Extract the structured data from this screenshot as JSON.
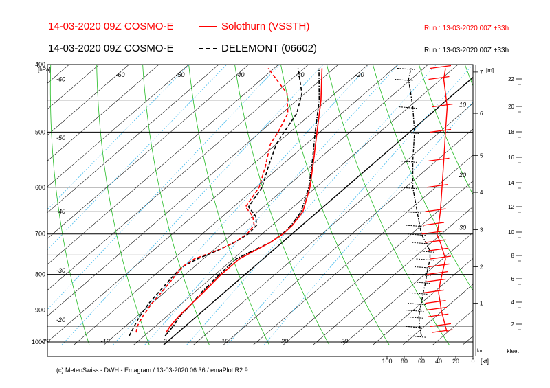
{
  "header": {
    "line1_title": "14-03-2020 09Z COSMO-E",
    "line1_station": "Solothurn (VSSTH)",
    "line1_run": "Run : 13-03-2020 00Z +33h",
    "line2_title": "14-03-2020 09Z COSMO-E",
    "line2_station": "DELEMONT (06602)",
    "line2_run": "Run : 13-03-2020 00Z +33h"
  },
  "footer": {
    "credit": "(c) MeteoSwiss - DWH - Emagram / 13-03-2020  06:36 / emaPlot R2.9"
  },
  "colors": {
    "solothurn": "#ff0000",
    "delemont": "#000000",
    "isotherm": "#000000",
    "dry_adiabat": "#22bb22",
    "mixing_ratio": "#44bbee",
    "grid": "#000000"
  },
  "chart_data": {
    "type": "line",
    "subtype": "emagram",
    "pressure_axis_label": "[hPa]",
    "pressure_ticks": [
      400,
      500,
      600,
      700,
      800,
      900,
      1000
    ],
    "temperature_axis_labels": [
      "-30",
      "-20",
      "-10",
      "0",
      "10",
      "20",
      "30"
    ],
    "temperature_labels_outside": [
      "-50",
      "-40",
      "-30"
    ],
    "isotherm_labels_left": [
      "-60",
      "-50",
      "-40",
      "-30",
      "-20"
    ],
    "isotherm_labels_top": [
      "-60",
      "-50",
      "-40",
      "-30",
      "-20"
    ],
    "theta_labels": [
      "10",
      "20",
      "30"
    ],
    "height_m_label": "[m]",
    "height_m_ticks": [
      "7",
      "6",
      "5",
      "4",
      "3",
      "2",
      "1"
    ],
    "height_km_label": "km",
    "height_kfeet_label": "kfeet",
    "height_kfeet_ticks": [
      "22",
      "20",
      "18",
      "16",
      "14",
      "12",
      "10",
      "8",
      "6",
      "4",
      "2"
    ],
    "wind_axis_label": "[kt]",
    "wind_ticks": [
      "100",
      "80",
      "60",
      "40",
      "20",
      "0"
    ],
    "series": [
      {
        "name": "Solothurn (VSSTH)",
        "temperature": [
          [
            969,
            -2.0
          ],
          [
            950,
            -2.5
          ],
          [
            920,
            -3.0
          ],
          [
            880,
            -3.3
          ],
          [
            850,
            -3.5
          ],
          [
            800,
            -4.0
          ],
          [
            760,
            -4.0
          ],
          [
            740,
            -3.0
          ],
          [
            720,
            -2.0
          ],
          [
            700,
            -1.5
          ],
          [
            680,
            -1.6
          ],
          [
            650,
            -2.5
          ],
          [
            600,
            -6.0
          ],
          [
            550,
            -10.5
          ],
          [
            500,
            -15.5
          ],
          [
            450,
            -21.0
          ],
          [
            405,
            -27.0
          ]
        ],
        "dewpoint": [
          [
            969,
            -7.0
          ],
          [
            950,
            -8.0
          ],
          [
            920,
            -9.0
          ],
          [
            880,
            -10.0
          ],
          [
            850,
            -10.5
          ],
          [
            800,
            -11.5
          ],
          [
            780,
            -12.0
          ],
          [
            760,
            -11.5
          ],
          [
            745,
            -10.0
          ],
          [
            735,
            -9.0
          ],
          [
            720,
            -8.0
          ],
          [
            700,
            -7.5
          ],
          [
            680,
            -8.0
          ],
          [
            660,
            -10.0
          ],
          [
            640,
            -13.0
          ],
          [
            600,
            -14.5
          ],
          [
            560,
            -17.5
          ],
          [
            520,
            -21.0
          ],
          [
            500,
            -22.0
          ],
          [
            470,
            -24.0
          ],
          [
            440,
            -28.0
          ],
          [
            405,
            -36.0
          ]
        ],
        "wind_kt": [
          [
            969,
            30
          ],
          [
            950,
            32
          ],
          [
            920,
            35
          ],
          [
            900,
            37
          ],
          [
            880,
            38
          ],
          [
            850,
            40
          ],
          [
            820,
            38
          ],
          [
            800,
            36
          ],
          [
            780,
            34
          ],
          [
            760,
            32
          ],
          [
            740,
            35
          ],
          [
            720,
            38
          ],
          [
            700,
            42
          ],
          [
            680,
            40
          ],
          [
            650,
            38
          ],
          [
            600,
            36
          ],
          [
            550,
            34
          ],
          [
            500,
            32
          ],
          [
            460,
            30
          ],
          [
            420,
            34
          ],
          [
            405,
            32
          ]
        ]
      },
      {
        "name": "DELEMONT (06602)",
        "temperature": [
          [
            980,
            -1.5
          ],
          [
            950,
            -2.0
          ],
          [
            920,
            -2.8
          ],
          [
            880,
            -3.3
          ],
          [
            850,
            -3.8
          ],
          [
            800,
            -4.3
          ],
          [
            760,
            -4.5
          ],
          [
            740,
            -3.3
          ],
          [
            720,
            -2.0
          ],
          [
            700,
            -1.6
          ],
          [
            680,
            -1.8
          ],
          [
            650,
            -2.8
          ],
          [
            600,
            -6.2
          ],
          [
            550,
            -10.7
          ],
          [
            500,
            -15.8
          ],
          [
            450,
            -21.3
          ],
          [
            405,
            -27.5
          ]
        ],
        "dewpoint": [
          [
            980,
            -7.5
          ],
          [
            950,
            -8.5
          ],
          [
            920,
            -9.5
          ],
          [
            880,
            -10.5
          ],
          [
            850,
            -11.0
          ],
          [
            800,
            -11.8
          ],
          [
            780,
            -12.0
          ],
          [
            760,
            -11.0
          ],
          [
            740,
            -9.3
          ],
          [
            720,
            -8.0
          ],
          [
            700,
            -7.3
          ],
          [
            680,
            -7.6
          ],
          [
            660,
            -9.5
          ],
          [
            640,
            -12.5
          ],
          [
            600,
            -14.0
          ],
          [
            560,
            -17.0
          ],
          [
            520,
            -20.0
          ],
          [
            500,
            -21.0
          ],
          [
            470,
            -22.5
          ],
          [
            440,
            -25.5
          ],
          [
            405,
            -31.0
          ]
        ],
        "wind_kt": [
          [
            980,
            60
          ],
          [
            950,
            62
          ],
          [
            920,
            63
          ],
          [
            900,
            62
          ],
          [
            880,
            60
          ],
          [
            850,
            58
          ],
          [
            820,
            55
          ],
          [
            800,
            54
          ],
          [
            780,
            52
          ],
          [
            760,
            50
          ],
          [
            740,
            50
          ],
          [
            720,
            55
          ],
          [
            700,
            60
          ],
          [
            680,
            62
          ],
          [
            650,
            65
          ],
          [
            600,
            70
          ],
          [
            550,
            70
          ],
          [
            500,
            68
          ],
          [
            460,
            70
          ],
          [
            420,
            75
          ],
          [
            405,
            72
          ]
        ]
      }
    ]
  }
}
